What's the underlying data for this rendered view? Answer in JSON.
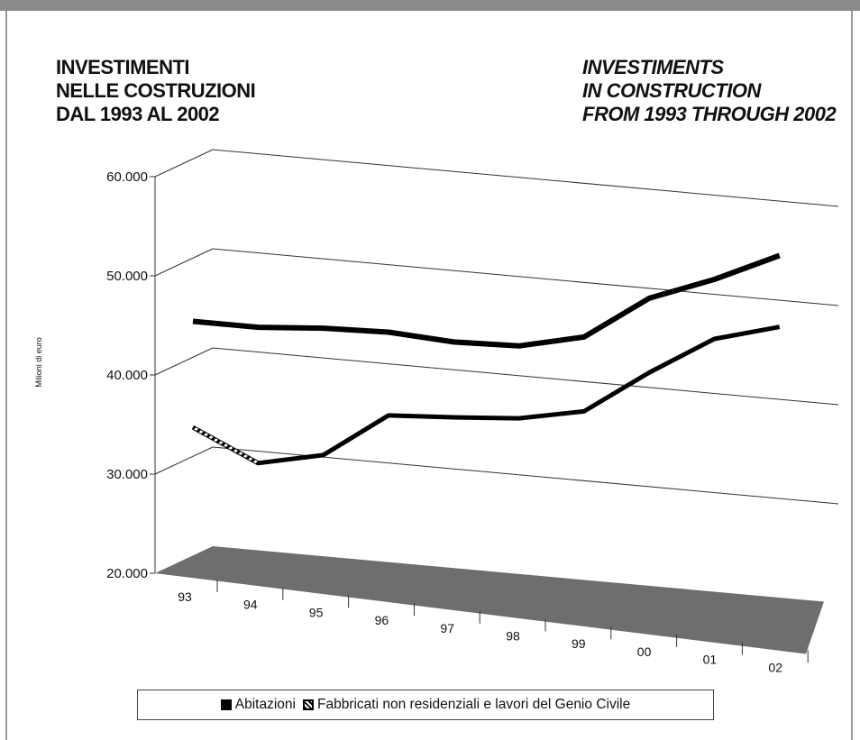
{
  "titles": {
    "italian": [
      "INVESTIMENTI",
      "NELLE COSTRUZIONI",
      "DAL 1993 AL 2002"
    ],
    "english": [
      "INVESTIMENTS",
      "IN CONSTRUCTION",
      "FROM 1993 THROUGH 2002"
    ]
  },
  "colors": {
    "frame": "#8a8a8a",
    "floor": "#6e6e6e",
    "grid": "#333333",
    "series": "#000000"
  },
  "chart_data": {
    "type": "line",
    "title": "",
    "xlabel": "",
    "ylabel": "Milioni di euro",
    "categories": [
      "93",
      "94",
      "95",
      "96",
      "97",
      "98",
      "99",
      "00",
      "01",
      "02"
    ],
    "y_ticks": [
      "20.000",
      "30.000",
      "40.000",
      "50.000",
      "60.000"
    ],
    "ylim": [
      20000,
      60000
    ],
    "grid": true,
    "perspective_3d": true,
    "legend_position": "bottom",
    "series": [
      {
        "name": "Abitazioni",
        "values": [
          42500,
          42500,
          43000,
          43200,
          42800,
          43000,
          44500,
          49000,
          51500,
          54500
        ]
      },
      {
        "name": "Fabbricati non residenziali e lavori del Genio Civile",
        "values": [
          31800,
          28800,
          30200,
          34800,
          35200,
          35700,
          37000,
          41500,
          45500,
          47300
        ]
      }
    ]
  }
}
